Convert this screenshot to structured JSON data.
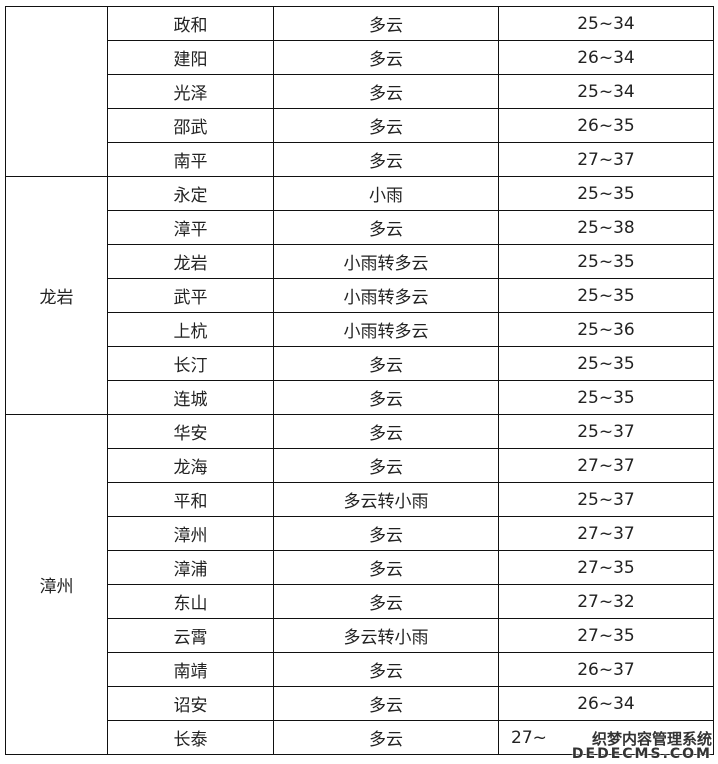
{
  "groups": [
    {
      "name": "",
      "rows": [
        {
          "county": "政和",
          "weather": "多云",
          "temp": "25~34"
        },
        {
          "county": "建阳",
          "weather": "多云",
          "temp": "26~34"
        },
        {
          "county": "光泽",
          "weather": "多云",
          "temp": "25~34"
        },
        {
          "county": "邵武",
          "weather": "多云",
          "temp": "26~35"
        },
        {
          "county": "南平",
          "weather": "多云",
          "temp": "27~37"
        }
      ]
    },
    {
      "name": "龙岩",
      "rows": [
        {
          "county": "永定",
          "weather": "小雨",
          "temp": "25~35"
        },
        {
          "county": "漳平",
          "weather": "多云",
          "temp": "25~38"
        },
        {
          "county": "龙岩",
          "weather": "小雨转多云",
          "temp": "25~35"
        },
        {
          "county": "武平",
          "weather": "小雨转多云",
          "temp": "25~35"
        },
        {
          "county": "上杭",
          "weather": "小雨转多云",
          "temp": "25~36"
        },
        {
          "county": "长汀",
          "weather": "多云",
          "temp": "25~35"
        },
        {
          "county": "连城",
          "weather": "多云",
          "temp": "25~35"
        }
      ]
    },
    {
      "name": "漳州",
      "rows": [
        {
          "county": "华安",
          "weather": "多云",
          "temp": "25~37"
        },
        {
          "county": "龙海",
          "weather": "多云",
          "temp": "27~37"
        },
        {
          "county": "平和",
          "weather": "多云转小雨",
          "temp": "25~37"
        },
        {
          "county": "漳州",
          "weather": "多云",
          "temp": "27~37"
        },
        {
          "county": "漳浦",
          "weather": "多云",
          "temp": "27~35"
        },
        {
          "county": "东山",
          "weather": "多云",
          "temp": "27~32"
        },
        {
          "county": "云霄",
          "weather": "多云转小雨",
          "temp": "27~35"
        },
        {
          "county": "南靖",
          "weather": "多云",
          "temp": "26~37"
        },
        {
          "county": "诏安",
          "weather": "多云",
          "temp": "26~34"
        },
        {
          "county": "长泰",
          "weather": "多云",
          "temp": "27~"
        }
      ]
    }
  ],
  "watermark": {
    "line1": "织梦内容管理系统",
    "line2": "DEDECMS.COM"
  }
}
